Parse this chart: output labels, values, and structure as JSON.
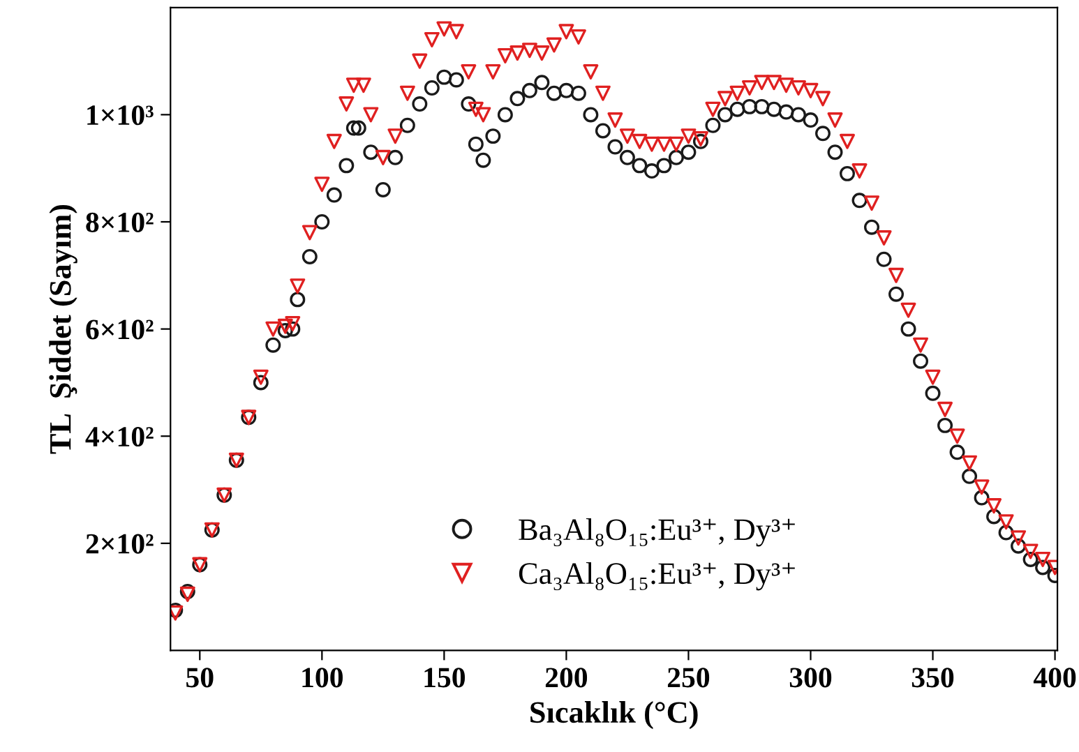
{
  "chart_data": {
    "type": "scatter",
    "xlabel": "Sıcaklık (°C)",
    "ylabel": "TL  Şiddet (Sayım)",
    "xlim": [
      38,
      401
    ],
    "ylim": [
      0,
      1200
    ],
    "xticks": [
      50,
      100,
      150,
      200,
      250,
      300,
      350,
      400
    ],
    "yticks": [
      {
        "value": 200,
        "label": "2×10²"
      },
      {
        "value": 400,
        "label": "4×10²"
      },
      {
        "value": 600,
        "label": "6×10²"
      },
      {
        "value": 800,
        "label": "8×10²"
      },
      {
        "value": 1000,
        "label": "1×10³"
      }
    ],
    "grid": false,
    "legend": "bottom",
    "series": [
      {
        "name": "Ba₃Al₈O₁₅:Eu³⁺, Dy³⁺",
        "color": "#1a1a1a",
        "marker": "circle",
        "x": [
          40,
          45,
          50,
          55,
          60,
          65,
          70,
          75,
          80,
          85,
          88,
          90,
          95,
          100,
          105,
          110,
          113,
          115,
          120,
          125,
          130,
          135,
          140,
          145,
          150,
          155,
          160,
          163,
          166,
          170,
          175,
          180,
          185,
          190,
          195,
          200,
          205,
          210,
          215,
          220,
          225,
          230,
          235,
          240,
          245,
          250,
          255,
          260,
          265,
          270,
          275,
          280,
          285,
          290,
          295,
          300,
          305,
          310,
          315,
          320,
          325,
          330,
          335,
          340,
          345,
          350,
          355,
          360,
          365,
          370,
          375,
          380,
          385,
          390,
          395,
          400
        ],
        "values": [
          75,
          110,
          160,
          225,
          290,
          355,
          435,
          500,
          570,
          597,
          600,
          655,
          735,
          800,
          850,
          905,
          975,
          975,
          930,
          860,
          920,
          980,
          1020,
          1050,
          1070,
          1065,
          1020,
          945,
          915,
          960,
          1000,
          1030,
          1045,
          1060,
          1040,
          1045,
          1040,
          1000,
          970,
          940,
          920,
          905,
          895,
          905,
          920,
          930,
          950,
          980,
          1000,
          1010,
          1015,
          1015,
          1010,
          1005,
          1000,
          990,
          965,
          930,
          890,
          840,
          790,
          730,
          665,
          600,
          540,
          480,
          420,
          370,
          325,
          285,
          250,
          220,
          195,
          170,
          155,
          140
        ]
      },
      {
        "name": "Ca₃Al₈O₁₅:Eu³⁺, Dy³⁺",
        "color": "#e02020",
        "marker": "triangle",
        "x": [
          40,
          45,
          50,
          55,
          60,
          65,
          70,
          75,
          80,
          85,
          88,
          90,
          95,
          100,
          105,
          110,
          113,
          117,
          120,
          125,
          130,
          135,
          140,
          145,
          150,
          155,
          160,
          163,
          166,
          170,
          175,
          180,
          185,
          190,
          195,
          200,
          205,
          210,
          215,
          220,
          225,
          230,
          235,
          240,
          245,
          250,
          255,
          260,
          265,
          270,
          275,
          280,
          285,
          290,
          295,
          300,
          305,
          310,
          315,
          320,
          325,
          330,
          335,
          340,
          345,
          350,
          355,
          360,
          365,
          370,
          375,
          380,
          385,
          390,
          395,
          400
        ],
        "values": [
          70,
          105,
          160,
          225,
          290,
          355,
          435,
          510,
          600,
          605,
          610,
          680,
          780,
          870,
          950,
          1020,
          1055,
          1055,
          1000,
          920,
          960,
          1040,
          1100,
          1140,
          1160,
          1155,
          1080,
          1010,
          1000,
          1080,
          1110,
          1115,
          1120,
          1115,
          1130,
          1155,
          1145,
          1080,
          1040,
          990,
          960,
          950,
          945,
          945,
          945,
          960,
          955,
          1010,
          1030,
          1040,
          1050,
          1060,
          1060,
          1055,
          1050,
          1045,
          1030,
          990,
          950,
          895,
          835,
          770,
          700,
          635,
          570,
          510,
          450,
          400,
          350,
          305,
          270,
          240,
          210,
          185,
          170,
          155
        ]
      }
    ]
  }
}
